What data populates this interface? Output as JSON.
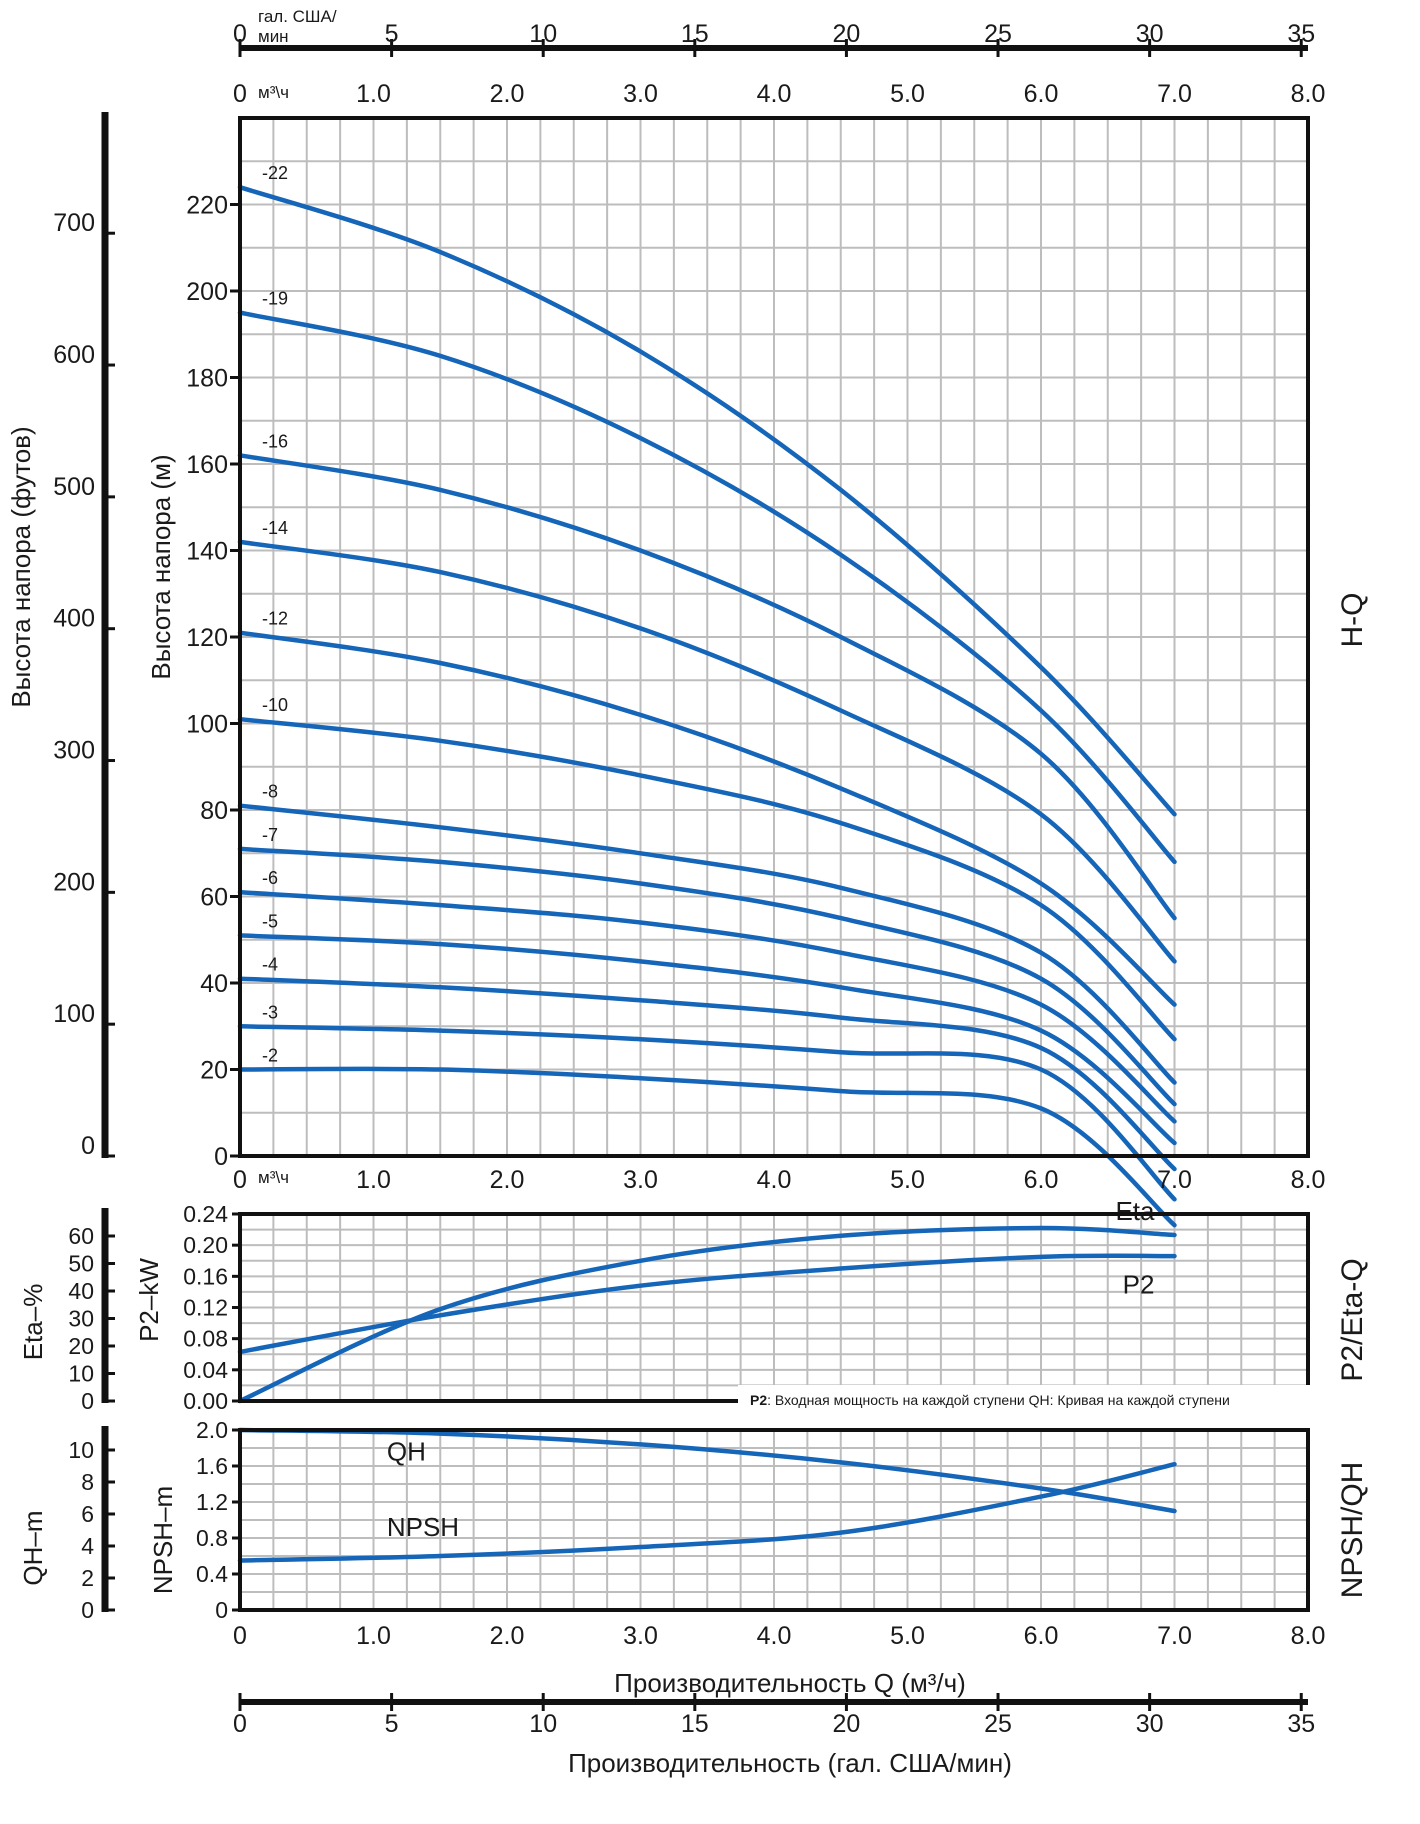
{
  "chart_data": [
    {
      "type": "line",
      "panel": "H-Q",
      "side_title": "H-Q",
      "xlabel_unit": "м³\\ч",
      "ylabel": "Высота напора (м)",
      "ylabel_secondary": "Высота напора (футов)",
      "xlim": [
        0,
        8.0
      ],
      "ylim": [
        0,
        240
      ],
      "x_ticks": [
        "0",
        "1.0",
        "2.0",
        "3.0",
        "4.0",
        "5.0",
        "6.0",
        "7.0",
        "8.0"
      ],
      "y_ticks": [
        "0",
        "20",
        "40",
        "60",
        "80",
        "100",
        "120",
        "140",
        "160",
        "180",
        "200",
        "220"
      ],
      "y_ticks_secondary": [
        "0",
        "100",
        "200",
        "300",
        "400",
        "500",
        "600",
        "700"
      ],
      "grid": true,
      "color": "#1565b8",
      "x": [
        0,
        1.5,
        3.0,
        4.5,
        6.0,
        7.0
      ],
      "series": [
        {
          "name": "-22",
          "values": [
            224,
            209,
            186,
            154,
            113,
            79
          ]
        },
        {
          "name": "-19",
          "values": [
            195,
            185,
            166,
            139,
            103,
            68
          ]
        },
        {
          "name": "-16",
          "values": [
            162,
            154,
            140,
            120,
            93,
            55
          ]
        },
        {
          "name": "-14",
          "values": [
            142,
            135,
            122,
            103,
            79,
            45
          ]
        },
        {
          "name": "-12",
          "values": [
            121,
            114,
            102,
            85,
            63,
            35
          ]
        },
        {
          "name": "-10",
          "values": [
            101,
            96,
            88,
            77,
            58,
            27
          ]
        },
        {
          "name": "-8",
          "values": [
            81,
            76,
            70,
            62,
            47,
            17
          ]
        },
        {
          "name": "-7",
          "values": [
            71,
            68,
            63,
            55,
            41,
            12
          ]
        },
        {
          "name": "-6",
          "values": [
            61,
            58,
            54,
            47,
            35,
            8
          ]
        },
        {
          "name": "-5",
          "values": [
            51,
            49,
            45,
            39,
            29,
            3
          ]
        },
        {
          "name": "-4",
          "values": [
            41,
            39,
            36,
            32,
            25,
            -3
          ]
        },
        {
          "name": "-3",
          "values": [
            30,
            29,
            27,
            24,
            20,
            -10
          ]
        },
        {
          "name": "-2",
          "values": [
            20,
            20,
            18,
            15,
            11,
            -16
          ]
        }
      ]
    },
    {
      "type": "line",
      "panel": "P2/Eta-Q",
      "side_title": "P2/Eta-Q",
      "xlim": [
        0,
        8.0
      ],
      "ylim": [
        0,
        0.24
      ],
      "y_ticks": [
        "0.00",
        "0.04",
        "0.08",
        "0.12",
        "0.16",
        "0.20",
        "0.24"
      ],
      "ylabel": "P2–kW",
      "y_ticks_secondary": [
        "0",
        "10",
        "20",
        "30",
        "40",
        "50",
        "60"
      ],
      "ylabel_secondary": "Eta–%",
      "grid": true,
      "x": [
        0,
        1.5,
        3.0,
        4.5,
        6.0,
        7.0
      ],
      "series": [
        {
          "name": "Eta",
          "values": [
            0,
            0.118,
            0.18,
            0.212,
            0.222,
            0.213
          ]
        },
        {
          "name": "P2",
          "values": [
            0.063,
            0.11,
            0.148,
            0.17,
            0.185,
            0.186
          ]
        }
      ],
      "note_bold": "P2",
      "note_text": ": Входная мощность на каждой ступени QH: Кривая на каждой ступени"
    },
    {
      "type": "line",
      "panel": "NPSH/QH",
      "side_title": "NPSH/QH",
      "xlim": [
        0,
        8.0
      ],
      "ylim": [
        0,
        2.0
      ],
      "x_ticks": [
        "0",
        "1.0",
        "2.0",
        "3.0",
        "4.0",
        "5.0",
        "6.0",
        "7.0",
        "8.0"
      ],
      "y_ticks": [
        "0",
        "0.4",
        "0.8",
        "1.2",
        "1.6",
        "2.0"
      ],
      "ylabel": "NPSH–m",
      "y_ticks_secondary": [
        "0",
        "2",
        "4",
        "6",
        "8",
        "10"
      ],
      "ylabel_secondary": "QH–m",
      "grid": true,
      "x": [
        0,
        1.5,
        3.0,
        4.5,
        6.0,
        7.0
      ],
      "series": [
        {
          "name": "QH",
          "values": [
            2.0,
            1.96,
            1.84,
            1.64,
            1.35,
            1.1
          ]
        },
        {
          "name": "NPSH",
          "values": [
            0.55,
            0.6,
            0.7,
            0.86,
            1.26,
            1.62
          ]
        }
      ],
      "xlabel": "Производительность Q (м³/ч)"
    }
  ],
  "top_axes": {
    "gpm_label": "гал. США/",
    "gpm_label2": "мин",
    "gpm_ticks": [
      "0",
      "5",
      "10",
      "15",
      "20",
      "25",
      "30",
      "35"
    ],
    "m3h_unit": "м³\\ч",
    "m3h_ticks": [
      "0",
      "1.0",
      "2.0",
      "3.0",
      "4.0",
      "5.0",
      "6.0",
      "7.0",
      "8.0"
    ]
  },
  "bottom_axis": {
    "gpm_ticks": [
      "0",
      "5",
      "10",
      "15",
      "20",
      "25",
      "30",
      "35"
    ],
    "xlabel": "Производительность (гал. США/мин)"
  }
}
